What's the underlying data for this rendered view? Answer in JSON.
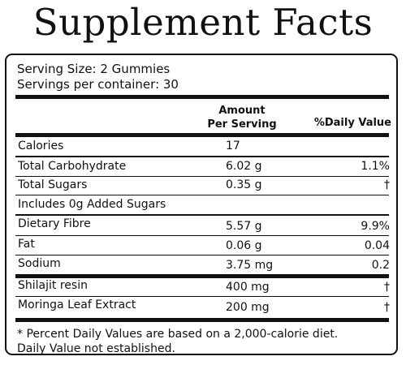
{
  "title": "Supplement Facts",
  "serving_size": "Serving Size: 2 Gummies",
  "servings_per_container": "Servings per container: 30",
  "header": {
    "amount_line1": "Amount",
    "amount_line2": "Per Serving",
    "daily_value": "%Daily Value"
  },
  "rows": [
    {
      "label": "Calories",
      "amount": "17",
      "dv": ""
    },
    {
      "label": "Total Carbohydrate",
      "amount": "6.02 g",
      "dv": "1.1%"
    },
    {
      "label": "Total Sugars",
      "amount": "0.35 g",
      "dv": "†"
    },
    {
      "label": "Includes 0g Added Sugars",
      "amount": "",
      "dv": ""
    },
    {
      "label": "Dietary Fibre",
      "amount": "5.57 g",
      "dv": "9.9%"
    },
    {
      "label": "Fat",
      "amount": "0.06 g",
      "dv": "0.04"
    },
    {
      "label": "Sodium",
      "amount": "3.75 mg",
      "dv": "0.2"
    },
    {
      "label": "Shilajit resin",
      "amount": "400 mg",
      "dv": "†"
    },
    {
      "label": "Moringa Leaf Extract",
      "amount": "200 mg",
      "dv": "†"
    }
  ],
  "footnote": {
    "line1": "* Percent Daily Values are based on a 2,000-calorie diet.",
    "line2": "Daily Value not established."
  }
}
